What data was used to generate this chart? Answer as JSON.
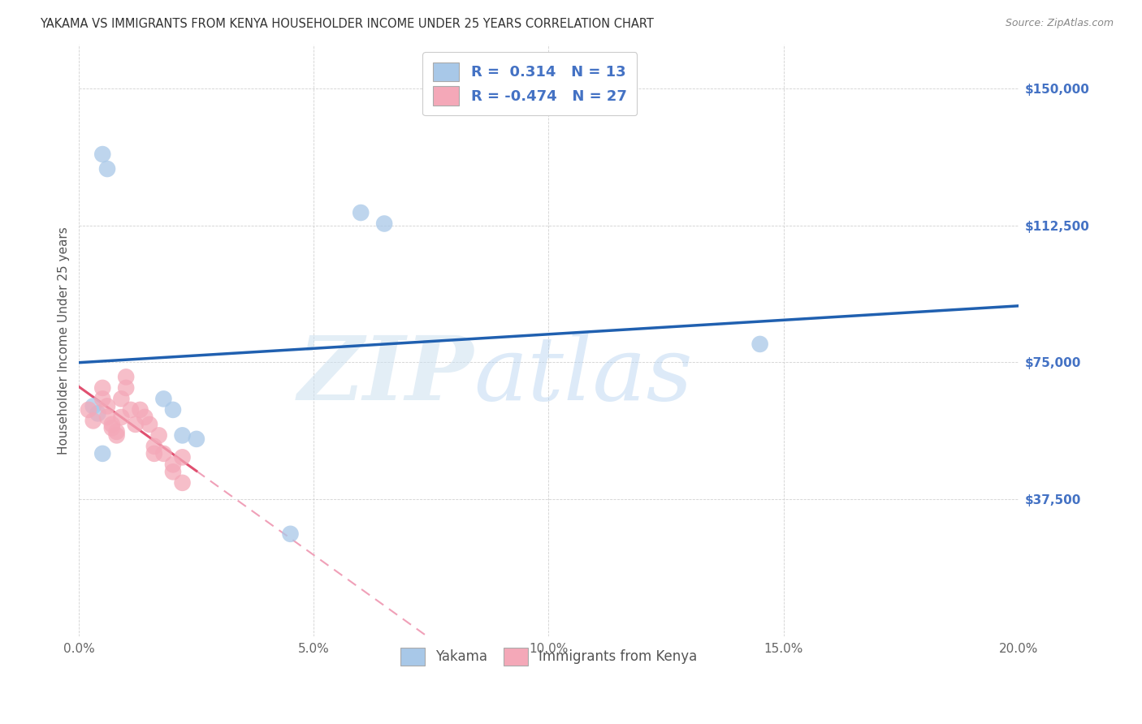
{
  "title": "YAKAMA VS IMMIGRANTS FROM KENYA HOUSEHOLDER INCOME UNDER 25 YEARS CORRELATION CHART",
  "source": "Source: ZipAtlas.com",
  "ylabel": "Householder Income Under 25 years",
  "xlabel_ticks": [
    "0.0%",
    "5.0%",
    "10.0%",
    "15.0%",
    "20.0%"
  ],
  "xlabel_vals": [
    0.0,
    0.05,
    0.1,
    0.15,
    0.2
  ],
  "ylabel_ticks": [
    "$150,000",
    "$112,500",
    "$75,000",
    "$37,500"
  ],
  "ylabel_vals": [
    150000,
    112500,
    75000,
    37500
  ],
  "xlim": [
    0.0,
    0.2
  ],
  "ylim": [
    0,
    162000
  ],
  "yakama_color": "#a8c8e8",
  "kenya_color": "#f4a8b8",
  "line_yakama_color": "#2060b0",
  "line_kenya_solid_color": "#e05070",
  "line_kenya_dash_color": "#f0a0b8",
  "yakama_points": [
    [
      0.005,
      132000
    ],
    [
      0.006,
      128000
    ],
    [
      0.003,
      63000
    ],
    [
      0.004,
      61000
    ],
    [
      0.005,
      50000
    ],
    [
      0.018,
      65000
    ],
    [
      0.02,
      62000
    ],
    [
      0.022,
      55000
    ],
    [
      0.025,
      54000
    ],
    [
      0.06,
      116000
    ],
    [
      0.065,
      113000
    ],
    [
      0.145,
      80000
    ],
    [
      0.045,
      28000
    ]
  ],
  "kenya_points": [
    [
      0.002,
      62000
    ],
    [
      0.003,
      59000
    ],
    [
      0.005,
      68000
    ],
    [
      0.005,
      65000
    ],
    [
      0.006,
      63000
    ],
    [
      0.006,
      60000
    ],
    [
      0.007,
      58000
    ],
    [
      0.007,
      57000
    ],
    [
      0.008,
      56000
    ],
    [
      0.008,
      55000
    ],
    [
      0.009,
      65000
    ],
    [
      0.009,
      60000
    ],
    [
      0.01,
      71000
    ],
    [
      0.01,
      68000
    ],
    [
      0.011,
      62000
    ],
    [
      0.012,
      58000
    ],
    [
      0.013,
      62000
    ],
    [
      0.014,
      60000
    ],
    [
      0.015,
      58000
    ],
    [
      0.016,
      52000
    ],
    [
      0.016,
      50000
    ],
    [
      0.017,
      55000
    ],
    [
      0.018,
      50000
    ],
    [
      0.02,
      47000
    ],
    [
      0.02,
      45000
    ],
    [
      0.022,
      49000
    ],
    [
      0.022,
      42000
    ]
  ]
}
